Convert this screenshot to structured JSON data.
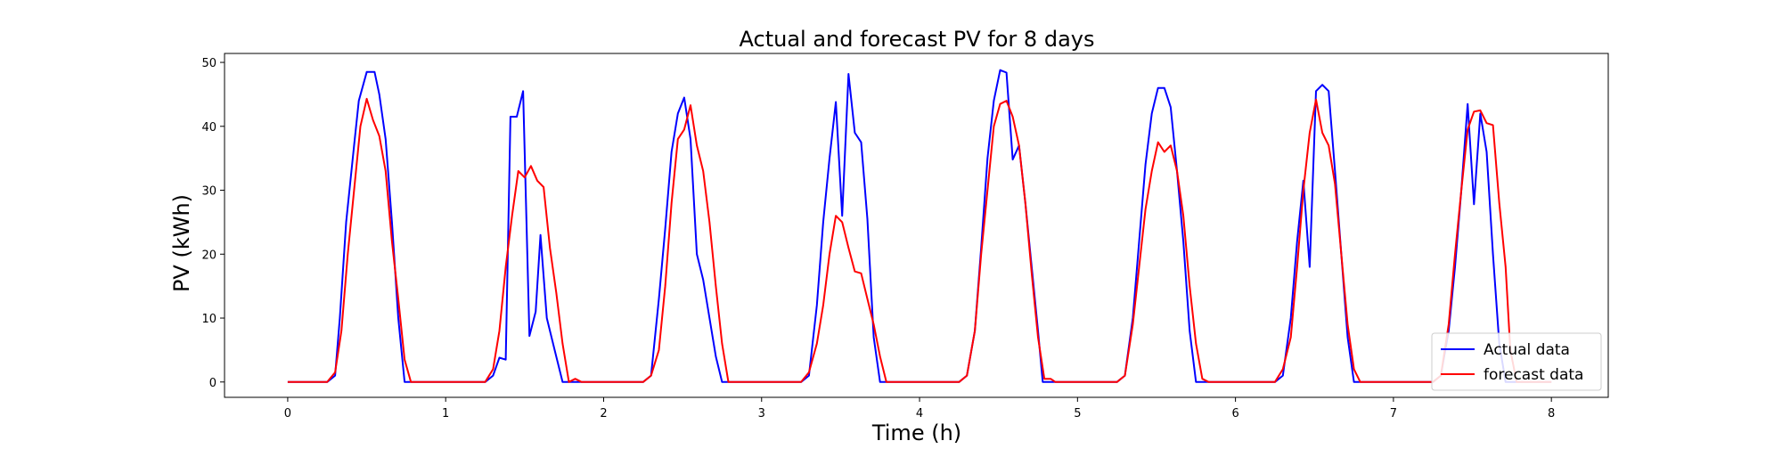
{
  "chart_data": {
    "type": "line",
    "title": "Actual and forecast PV for 8 days",
    "xlabel": "Time (h)",
    "ylabel": "PV (kWh)",
    "xlim": [
      -0.4,
      8.36
    ],
    "ylim": [
      -2.4,
      51.4
    ],
    "xticks": [
      0,
      1,
      2,
      3,
      4,
      5,
      6,
      7,
      8
    ],
    "yticks": [
      0,
      10,
      20,
      30,
      40,
      50
    ],
    "grid": false,
    "legend_position": "lower-right",
    "series": [
      {
        "name": "Actual data",
        "color": "#0000ff",
        "points": [
          [
            0,
            0
          ],
          [
            0.25,
            0
          ],
          [
            0.3,
            1
          ],
          [
            0.33,
            10
          ],
          [
            0.37,
            25
          ],
          [
            0.42,
            37
          ],
          [
            0.45,
            44
          ],
          [
            0.5,
            48.5
          ],
          [
            0.55,
            48.5
          ],
          [
            0.58,
            45
          ],
          [
            0.62,
            38
          ],
          [
            0.66,
            25
          ],
          [
            0.7,
            10
          ],
          [
            0.74,
            0
          ],
          [
            1,
            0
          ],
          [
            1.25,
            0
          ],
          [
            1.3,
            1
          ],
          [
            1.34,
            3.8
          ],
          [
            1.38,
            3.5
          ],
          [
            1.41,
            41.5
          ],
          [
            1.45,
            41.5
          ],
          [
            1.49,
            45.5
          ],
          [
            1.53,
            7.2
          ],
          [
            1.57,
            11
          ],
          [
            1.6,
            23
          ],
          [
            1.64,
            10
          ],
          [
            1.69,
            5
          ],
          [
            1.74,
            0
          ],
          [
            2,
            0
          ],
          [
            2.25,
            0
          ],
          [
            2.3,
            1
          ],
          [
            2.35,
            13
          ],
          [
            2.39,
            24
          ],
          [
            2.43,
            36
          ],
          [
            2.47,
            42
          ],
          [
            2.51,
            44.5
          ],
          [
            2.55,
            38
          ],
          [
            2.59,
            20
          ],
          [
            2.63,
            16
          ],
          [
            2.67,
            10
          ],
          [
            2.71,
            4
          ],
          [
            2.75,
            0
          ],
          [
            3,
            0
          ],
          [
            3.25,
            0
          ],
          [
            3.3,
            1
          ],
          [
            3.35,
            12
          ],
          [
            3.39,
            25
          ],
          [
            3.43,
            35
          ],
          [
            3.47,
            43.8
          ],
          [
            3.51,
            26
          ],
          [
            3.55,
            48.2
          ],
          [
            3.59,
            39
          ],
          [
            3.63,
            37.5
          ],
          [
            3.67,
            25.5
          ],
          [
            3.71,
            7
          ],
          [
            3.75,
            0
          ],
          [
            4,
            0
          ],
          [
            4.25,
            0
          ],
          [
            4.3,
            1
          ],
          [
            4.35,
            8
          ],
          [
            4.39,
            21
          ],
          [
            4.43,
            35
          ],
          [
            4.47,
            44
          ],
          [
            4.51,
            48.8
          ],
          [
            4.55,
            48.4
          ],
          [
            4.59,
            34.8
          ],
          [
            4.63,
            37
          ],
          [
            4.67,
            28
          ],
          [
            4.71,
            18
          ],
          [
            4.75,
            8
          ],
          [
            4.78,
            0
          ],
          [
            5,
            0
          ],
          [
            5.25,
            0
          ],
          [
            5.3,
            1
          ],
          [
            5.35,
            10
          ],
          [
            5.39,
            22
          ],
          [
            5.43,
            34
          ],
          [
            5.47,
            42
          ],
          [
            5.51,
            46
          ],
          [
            5.55,
            46
          ],
          [
            5.59,
            43
          ],
          [
            5.63,
            33
          ],
          [
            5.67,
            22
          ],
          [
            5.71,
            8
          ],
          [
            5.75,
            0
          ],
          [
            6,
            0
          ],
          [
            6.25,
            0
          ],
          [
            6.3,
            1
          ],
          [
            6.35,
            10
          ],
          [
            6.39,
            22
          ],
          [
            6.43,
            31.5
          ],
          [
            6.47,
            18
          ],
          [
            6.51,
            45.5
          ],
          [
            6.55,
            46.5
          ],
          [
            6.59,
            45.5
          ],
          [
            6.63,
            33
          ],
          [
            6.67,
            20
          ],
          [
            6.71,
            7
          ],
          [
            6.75,
            0
          ],
          [
            7,
            0
          ],
          [
            7.25,
            0
          ],
          [
            7.3,
            1
          ],
          [
            7.35,
            8
          ],
          [
            7.39,
            18
          ],
          [
            7.43,
            30
          ],
          [
            7.47,
            43.5
          ],
          [
            7.51,
            27.8
          ],
          [
            7.55,
            42
          ],
          [
            7.59,
            36
          ],
          [
            7.63,
            20
          ],
          [
            7.67,
            6
          ],
          [
            7.71,
            0
          ],
          [
            8,
            0
          ]
        ]
      },
      {
        "name": "forecast data",
        "color": "#ff0000",
        "points": [
          [
            0,
            0
          ],
          [
            0.25,
            0
          ],
          [
            0.3,
            1.5
          ],
          [
            0.34,
            8
          ],
          [
            0.38,
            20
          ],
          [
            0.42,
            30
          ],
          [
            0.46,
            40
          ],
          [
            0.5,
            44.3
          ],
          [
            0.54,
            41
          ],
          [
            0.58,
            38.5
          ],
          [
            0.62,
            33
          ],
          [
            0.66,
            22
          ],
          [
            0.7,
            13
          ],
          [
            0.74,
            3.5
          ],
          [
            0.78,
            0
          ],
          [
            1,
            0
          ],
          [
            1.25,
            0
          ],
          [
            1.3,
            2
          ],
          [
            1.34,
            8
          ],
          [
            1.38,
            18
          ],
          [
            1.42,
            26
          ],
          [
            1.46,
            33
          ],
          [
            1.5,
            32
          ],
          [
            1.54,
            33.8
          ],
          [
            1.58,
            31.5
          ],
          [
            1.62,
            30.5
          ],
          [
            1.66,
            21
          ],
          [
            1.7,
            14
          ],
          [
            1.74,
            6
          ],
          [
            1.78,
            0
          ],
          [
            1.82,
            0.5
          ],
          [
            1.86,
            0
          ],
          [
            2,
            0
          ],
          [
            2.25,
            0
          ],
          [
            2.3,
            1
          ],
          [
            2.35,
            5
          ],
          [
            2.39,
            15
          ],
          [
            2.43,
            28
          ],
          [
            2.47,
            38
          ],
          [
            2.51,
            39.5
          ],
          [
            2.55,
            43.3
          ],
          [
            2.59,
            37
          ],
          [
            2.63,
            33
          ],
          [
            2.67,
            25
          ],
          [
            2.71,
            15
          ],
          [
            2.75,
            6
          ],
          [
            2.79,
            0
          ],
          [
            3,
            0
          ],
          [
            3.25,
            0
          ],
          [
            3.3,
            1.5
          ],
          [
            3.35,
            6
          ],
          [
            3.39,
            12
          ],
          [
            3.43,
            20
          ],
          [
            3.47,
            26
          ],
          [
            3.51,
            25
          ],
          [
            3.55,
            21
          ],
          [
            3.59,
            17.3
          ],
          [
            3.63,
            17
          ],
          [
            3.67,
            13
          ],
          [
            3.71,
            9
          ],
          [
            3.75,
            4
          ],
          [
            3.79,
            0
          ],
          [
            4,
            0
          ],
          [
            4.25,
            0
          ],
          [
            4.3,
            1
          ],
          [
            4.35,
            8
          ],
          [
            4.39,
            20
          ],
          [
            4.43,
            30
          ],
          [
            4.47,
            40
          ],
          [
            4.51,
            43.5
          ],
          [
            4.55,
            44
          ],
          [
            4.59,
            41.5
          ],
          [
            4.63,
            37
          ],
          [
            4.67,
            28
          ],
          [
            4.71,
            17
          ],
          [
            4.75,
            7
          ],
          [
            4.79,
            0.5
          ],
          [
            4.83,
            0.5
          ],
          [
            4.86,
            0
          ],
          [
            5,
            0
          ],
          [
            5.25,
            0
          ],
          [
            5.3,
            1
          ],
          [
            5.35,
            9
          ],
          [
            5.39,
            18
          ],
          [
            5.43,
            27
          ],
          [
            5.47,
            33
          ],
          [
            5.51,
            37.5
          ],
          [
            5.55,
            36
          ],
          [
            5.59,
            37
          ],
          [
            5.63,
            33
          ],
          [
            5.67,
            26
          ],
          [
            5.71,
            15
          ],
          [
            5.75,
            6
          ],
          [
            5.79,
            0.5
          ],
          [
            5.83,
            0
          ],
          [
            6,
            0
          ],
          [
            6.25,
            0
          ],
          [
            6.3,
            2
          ],
          [
            6.35,
            7
          ],
          [
            6.39,
            18
          ],
          [
            6.43,
            30
          ],
          [
            6.47,
            39
          ],
          [
            6.51,
            44.2
          ],
          [
            6.55,
            39
          ],
          [
            6.59,
            37
          ],
          [
            6.63,
            31
          ],
          [
            6.67,
            20
          ],
          [
            6.71,
            9
          ],
          [
            6.75,
            2
          ],
          [
            6.79,
            0
          ],
          [
            7,
            0
          ],
          [
            7.25,
            0
          ],
          [
            7.3,
            1
          ],
          [
            7.35,
            9
          ],
          [
            7.39,
            20
          ],
          [
            7.43,
            30
          ],
          [
            7.47,
            39.5
          ],
          [
            7.51,
            42.3
          ],
          [
            7.55,
            42.5
          ],
          [
            7.59,
            40.5
          ],
          [
            7.63,
            40.2
          ],
          [
            7.67,
            28
          ],
          [
            7.71,
            18
          ],
          [
            7.74,
            5
          ],
          [
            7.78,
            0
          ],
          [
            8,
            0
          ]
        ]
      }
    ]
  }
}
